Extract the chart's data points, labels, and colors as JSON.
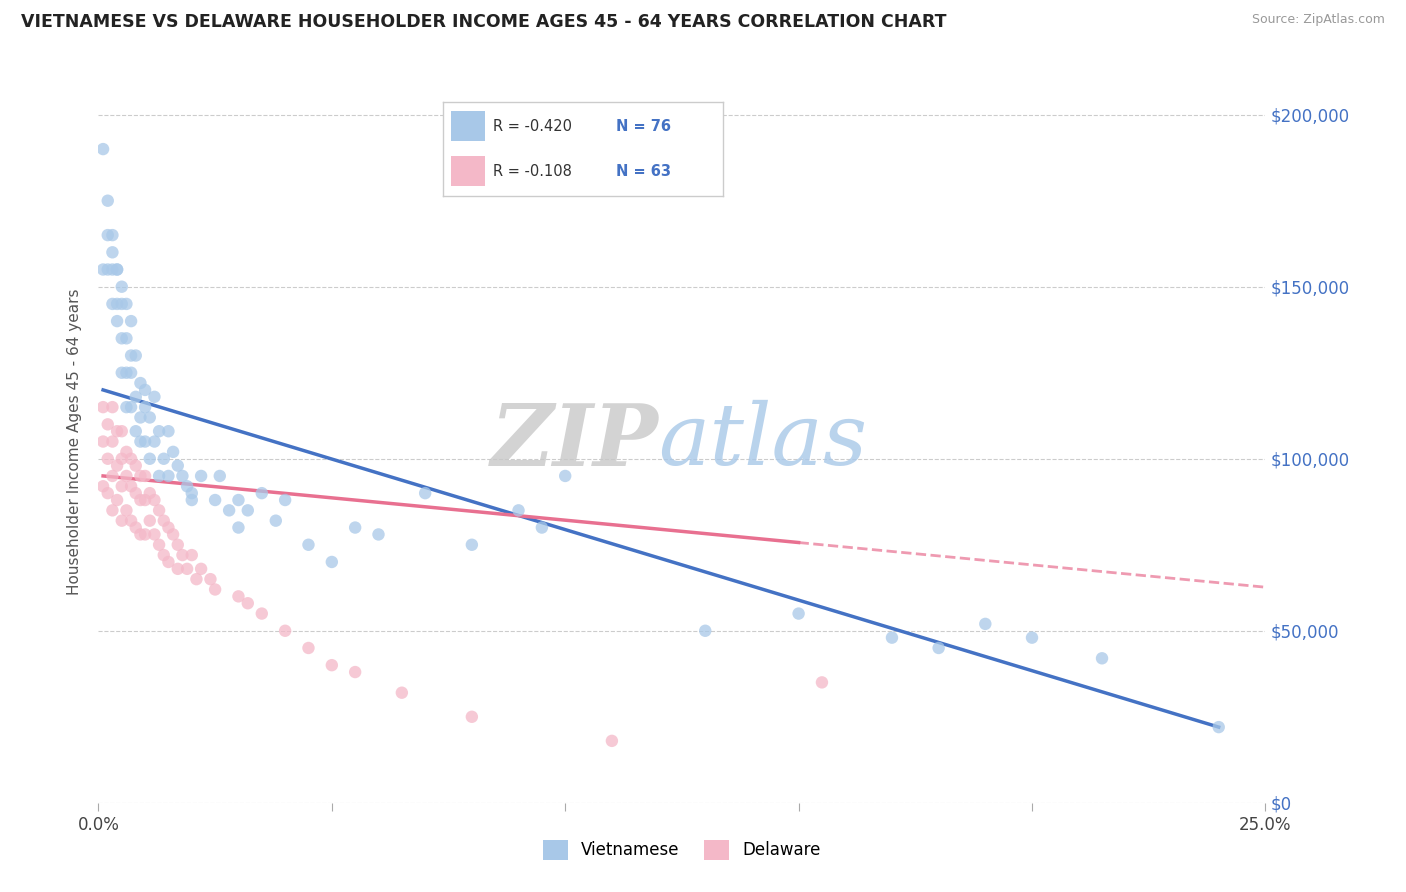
{
  "title": "VIETNAMESE VS DELAWARE HOUSEHOLDER INCOME AGES 45 - 64 YEARS CORRELATION CHART",
  "source": "Source: ZipAtlas.com",
  "ylabel": "Householder Income Ages 45 - 64 years",
  "xlim": [
    0.0,
    0.25
  ],
  "ylim": [
    0,
    210000
  ],
  "xticks": [
    0.0,
    0.05,
    0.1,
    0.15,
    0.2,
    0.25
  ],
  "xticklabels": [
    "0.0%",
    "",
    "",
    "",
    "",
    "25.0%"
  ],
  "yticks": [
    0,
    50000,
    100000,
    150000,
    200000
  ],
  "legend_r1": "-0.420",
  "legend_n1": "76",
  "legend_r2": "-0.108",
  "legend_n2": "63",
  "color_vietnamese": "#a8c8e8",
  "color_delaware": "#f4b8c8",
  "line_color_vietnamese": "#4472c4",
  "line_color_delaware": "#e87090",
  "background_color": "#ffffff",
  "vietnamese_x": [
    0.001,
    0.001,
    0.002,
    0.002,
    0.002,
    0.003,
    0.003,
    0.003,
    0.003,
    0.004,
    0.004,
    0.004,
    0.004,
    0.005,
    0.005,
    0.005,
    0.005,
    0.006,
    0.006,
    0.006,
    0.006,
    0.007,
    0.007,
    0.007,
    0.007,
    0.008,
    0.008,
    0.008,
    0.009,
    0.009,
    0.009,
    0.01,
    0.01,
    0.01,
    0.011,
    0.011,
    0.012,
    0.012,
    0.013,
    0.013,
    0.014,
    0.015,
    0.015,
    0.016,
    0.017,
    0.018,
    0.019,
    0.02,
    0.02,
    0.022,
    0.025,
    0.026,
    0.028,
    0.03,
    0.03,
    0.032,
    0.035,
    0.038,
    0.04,
    0.045,
    0.05,
    0.055,
    0.06,
    0.07,
    0.08,
    0.09,
    0.095,
    0.1,
    0.13,
    0.15,
    0.17,
    0.18,
    0.19,
    0.2,
    0.215,
    0.24
  ],
  "vietnamese_y": [
    190000,
    155000,
    175000,
    165000,
    155000,
    160000,
    145000,
    155000,
    165000,
    155000,
    155000,
    145000,
    140000,
    150000,
    145000,
    135000,
    125000,
    145000,
    135000,
    125000,
    115000,
    140000,
    130000,
    125000,
    115000,
    130000,
    118000,
    108000,
    122000,
    112000,
    105000,
    120000,
    115000,
    105000,
    112000,
    100000,
    118000,
    105000,
    108000,
    95000,
    100000,
    108000,
    95000,
    102000,
    98000,
    95000,
    92000,
    90000,
    88000,
    95000,
    88000,
    95000,
    85000,
    88000,
    80000,
    85000,
    90000,
    82000,
    88000,
    75000,
    70000,
    80000,
    78000,
    90000,
    75000,
    85000,
    80000,
    95000,
    50000,
    55000,
    48000,
    45000,
    52000,
    48000,
    42000,
    22000
  ],
  "delaware_x": [
    0.001,
    0.001,
    0.001,
    0.002,
    0.002,
    0.002,
    0.003,
    0.003,
    0.003,
    0.003,
    0.004,
    0.004,
    0.004,
    0.005,
    0.005,
    0.005,
    0.005,
    0.006,
    0.006,
    0.006,
    0.007,
    0.007,
    0.007,
    0.008,
    0.008,
    0.008,
    0.009,
    0.009,
    0.009,
    0.01,
    0.01,
    0.01,
    0.011,
    0.011,
    0.012,
    0.012,
    0.013,
    0.013,
    0.014,
    0.014,
    0.015,
    0.015,
    0.016,
    0.017,
    0.017,
    0.018,
    0.019,
    0.02,
    0.021,
    0.022,
    0.024,
    0.025,
    0.03,
    0.032,
    0.035,
    0.04,
    0.045,
    0.05,
    0.055,
    0.065,
    0.08,
    0.11,
    0.155
  ],
  "delaware_y": [
    115000,
    105000,
    92000,
    110000,
    100000,
    90000,
    115000,
    105000,
    95000,
    85000,
    108000,
    98000,
    88000,
    108000,
    100000,
    92000,
    82000,
    102000,
    95000,
    85000,
    100000,
    92000,
    82000,
    98000,
    90000,
    80000,
    95000,
    88000,
    78000,
    95000,
    88000,
    78000,
    90000,
    82000,
    88000,
    78000,
    85000,
    75000,
    82000,
    72000,
    80000,
    70000,
    78000,
    75000,
    68000,
    72000,
    68000,
    72000,
    65000,
    68000,
    65000,
    62000,
    60000,
    58000,
    55000,
    50000,
    45000,
    40000,
    38000,
    32000,
    25000,
    18000,
    35000
  ]
}
